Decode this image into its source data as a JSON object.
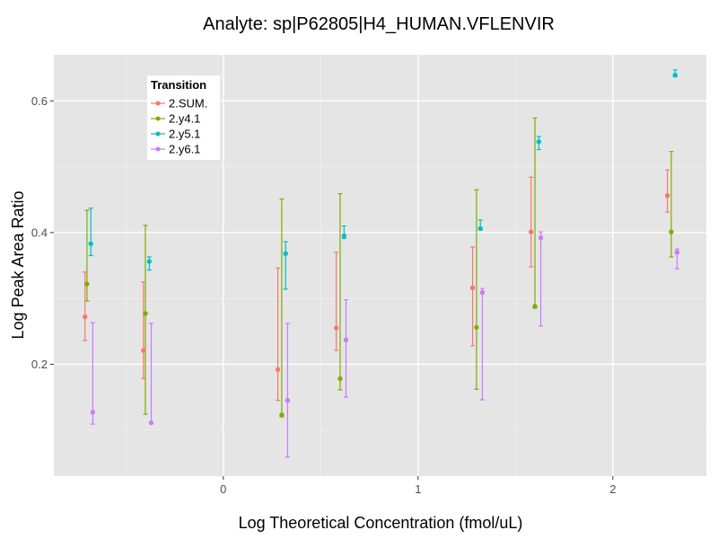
{
  "chart_data": {
    "type": "scatter",
    "title": "Analyte: sp|P62805|H4_HUMAN.VFLENVIR",
    "xlabel": "Log Theoretical Concentration (fmol/uL)",
    "ylabel": "Log Peak Area Ratio",
    "xlim": [
      -0.87,
      2.48
    ],
    "ylim": [
      0.03,
      0.67
    ],
    "x_ticks": [
      0,
      1,
      2
    ],
    "x_tick_labels": [
      "0",
      "1",
      "2"
    ],
    "y_ticks": [
      0.2,
      0.4,
      0.6
    ],
    "y_tick_labels": [
      "0.2",
      "0.4",
      "0.6"
    ],
    "grid": true,
    "legend": {
      "title": "Transition",
      "position": "top-left (inside plot)"
    },
    "error_bars": true,
    "series": [
      {
        "name": "2.SUM.",
        "color": "#F8766D",
        "points": [
          {
            "x": -0.71,
            "y": 0.272,
            "low": 0.236,
            "high": 0.34
          },
          {
            "x": -0.41,
            "y": 0.221,
            "low": 0.178,
            "high": 0.325
          },
          {
            "x": 0.28,
            "y": 0.192,
            "low": 0.145,
            "high": 0.346
          },
          {
            "x": 0.58,
            "y": 0.255,
            "low": 0.221,
            "high": 0.37
          },
          {
            "x": 1.28,
            "y": 0.316,
            "low": 0.228,
            "high": 0.378
          },
          {
            "x": 1.58,
            "y": 0.401,
            "low": 0.348,
            "high": 0.484
          },
          {
            "x": 2.28,
            "y": 0.456,
            "low": 0.431,
            "high": 0.495
          }
        ]
      },
      {
        "name": "2.y4.1",
        "color": "#7CAE00",
        "points": [
          {
            "x": -0.7,
            "y": 0.322,
            "low": 0.296,
            "high": 0.434
          },
          {
            "x": -0.4,
            "y": 0.277,
            "low": 0.124,
            "high": 0.411
          },
          {
            "x": 0.3,
            "y": 0.123,
            "low": 0.12,
            "high": 0.451
          },
          {
            "x": 0.6,
            "y": 0.178,
            "low": 0.161,
            "high": 0.459
          },
          {
            "x": 1.3,
            "y": 0.256,
            "low": 0.162,
            "high": 0.465
          },
          {
            "x": 1.6,
            "y": 0.288,
            "low": 0.285,
            "high": 0.574
          },
          {
            "x": 2.3,
            "y": 0.401,
            "low": 0.363,
            "high": 0.523
          }
        ]
      },
      {
        "name": "2.y5.1",
        "color": "#00BFC4",
        "points": [
          {
            "x": -0.68,
            "y": 0.383,
            "low": 0.365,
            "high": 0.437
          },
          {
            "x": -0.38,
            "y": 0.356,
            "low": 0.343,
            "high": 0.363
          },
          {
            "x": 0.32,
            "y": 0.368,
            "low": 0.314,
            "high": 0.386
          },
          {
            "x": 0.62,
            "y": 0.395,
            "low": 0.391,
            "high": 0.41
          },
          {
            "x": 1.32,
            "y": 0.406,
            "low": 0.404,
            "high": 0.419
          },
          {
            "x": 1.62,
            "y": 0.538,
            "low": 0.526,
            "high": 0.546
          },
          {
            "x": 2.32,
            "y": 0.639,
            "low": 0.637,
            "high": 0.647
          }
        ]
      },
      {
        "name": "2.y6.1",
        "color": "#C77CFF",
        "points": [
          {
            "x": -0.67,
            "y": 0.127,
            "low": 0.109,
            "high": 0.263
          },
          {
            "x": -0.37,
            "y": 0.111,
            "low": 0.111,
            "high": 0.262
          },
          {
            "x": 0.33,
            "y": 0.145,
            "low": 0.059,
            "high": 0.262
          },
          {
            "x": 0.63,
            "y": 0.237,
            "low": 0.15,
            "high": 0.298
          },
          {
            "x": 1.33,
            "y": 0.309,
            "low": 0.146,
            "high": 0.315
          },
          {
            "x": 1.63,
            "y": 0.392,
            "low": 0.258,
            "high": 0.401
          },
          {
            "x": 2.33,
            "y": 0.37,
            "low": 0.345,
            "high": 0.375
          }
        ]
      }
    ]
  }
}
